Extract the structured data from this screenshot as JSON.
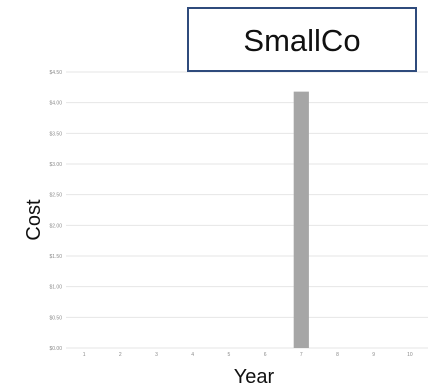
{
  "chart_data": {
    "type": "bar",
    "title": "SmallCo",
    "xlabel": "Year",
    "ylabel": "Cost",
    "categories": [
      "1",
      "2",
      "3",
      "4",
      "5",
      "6",
      "7",
      "8",
      "9",
      "10"
    ],
    "values": [
      0,
      0,
      0,
      0,
      0,
      0,
      4.18,
      0,
      0,
      0
    ],
    "x_tick_labels": [
      "1",
      "2",
      "3",
      "4",
      "5",
      "6",
      "7",
      "8",
      "9",
      "10"
    ],
    "y_tick_labels": [
      "$0.00",
      "$0.50",
      "$1.00",
      "$1.50",
      "$2.00",
      "$2.50",
      "$3.00",
      "$3.50",
      "$4.00",
      "$4.50"
    ],
    "ylim": [
      0,
      4.5
    ],
    "grid": true,
    "legend": "none"
  },
  "colors": {
    "bar": "#a6a6a6",
    "gridline": "#e6e6e6",
    "title_border": "#2f4b7c"
  }
}
